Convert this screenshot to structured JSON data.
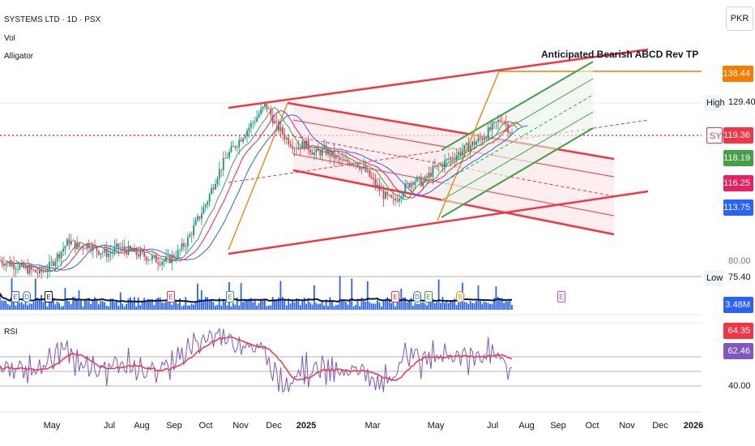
{
  "header": {
    "symbol": "SYSTEMS LTD · 1D · PSX",
    "indicators": [
      "Vol",
      "Alligator"
    ]
  },
  "currency": "PKR",
  "annotation": "Anticipated Bearish ABCD Rev TP",
  "price_axis": {
    "tags": [
      {
        "label": "",
        "value": "138.44",
        "color": "#f57c00"
      },
      {
        "label": "High",
        "value": "129.40",
        "color": ""
      },
      {
        "label": "SYS",
        "value": "119.36",
        "color": "#f23645"
      },
      {
        "label": "",
        "value": "118.19",
        "color": "#43a047"
      },
      {
        "label": "",
        "value": "116.25",
        "color": "#e91e63"
      },
      {
        "label": "",
        "value": "113.75",
        "color": "#2962ff"
      },
      {
        "label": "Low",
        "value": "75.40",
        "color": ""
      }
    ],
    "ticks": [
      "80.00"
    ],
    "volume_tag": "3.48M"
  },
  "rsi_panel": {
    "title": "RSI",
    "ticks": [
      "40.00"
    ],
    "tags": [
      {
        "value": "64.35",
        "color": "#f23645"
      },
      {
        "value": "62.46",
        "color": "#7e57c2"
      }
    ]
  },
  "time_axis": [
    "May",
    "Jul",
    "Aug",
    "Sep",
    "Oct",
    "Nov",
    "Dec",
    "2025",
    "Mar",
    "May",
    "Jul",
    "Aug",
    "Sep",
    "Oct",
    "Nov",
    "Dec",
    "2026"
  ],
  "events": [
    {
      "text": "E",
      "color": "#2962ff"
    },
    {
      "text": "D",
      "color": "#2962ff"
    },
    {
      "text": "E",
      "color": "#131722"
    },
    {
      "text": "E",
      "color": "#f23645"
    },
    {
      "text": "E",
      "color": "#43a047"
    },
    {
      "text": "E",
      "color": "#f23645"
    },
    {
      "text": "D",
      "color": "#2962ff"
    },
    {
      "text": "E",
      "color": "#43a047"
    },
    {
      "text": "S",
      "color": "#f57c00"
    },
    {
      "text": "E",
      "color": "#e040fb"
    }
  ],
  "chart_data": {
    "type": "line",
    "title": "SYSTEMS LTD · 1D · PSX",
    "last_price": 119.36,
    "high": 129.4,
    "low": 75.4,
    "target": 138.44,
    "alligator": [
      118.19,
      116.25,
      113.75
    ],
    "volume_last": "3.48M",
    "rsi": [
      64.35,
      62.46
    ],
    "series": [
      {
        "values": [
          80,
          79,
          78,
          77,
          76,
          78,
          82,
          86,
          84,
          85,
          83,
          82,
          84,
          83,
          82,
          81,
          80,
          80,
          82,
          86,
          92,
          98,
          106,
          112,
          116,
          120,
          124,
          128,
          122,
          118,
          115,
          116,
          113,
          114,
          112,
          110,
          111,
          108,
          104,
          100,
          98,
          102,
          105,
          104,
          108,
          110,
          112,
          114,
          116,
          118,
          121,
          124,
          119
        ]
      }
    ]
  }
}
